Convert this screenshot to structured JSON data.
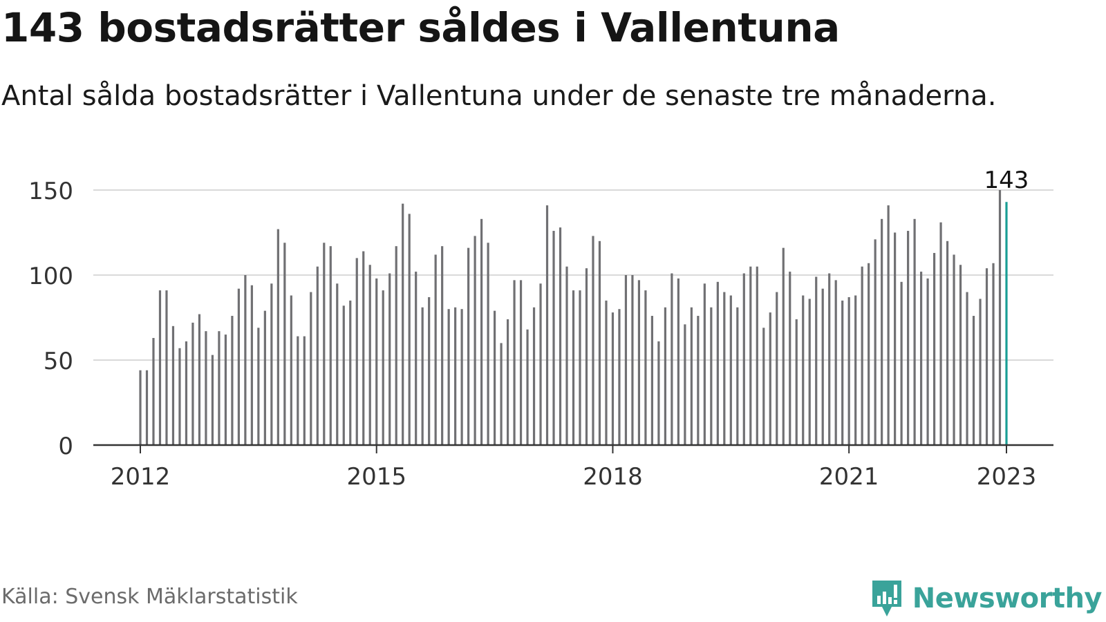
{
  "title": "143 bostadsrätter såldes i Vallentuna",
  "subtitle": "Antal sålda bostadsrätter i Vallentuna under de senaste tre månaderna.",
  "source": "Källa: Svensk Mäklarstatistik",
  "brand": {
    "name": "Newsworthy",
    "icon": "newsworthy-logo-icon",
    "color": "#3aa39a"
  },
  "colors": {
    "bar": "#707073",
    "highlight": "#1a9e95",
    "grid": "#d9d9d9",
    "axis": "#333333"
  },
  "chart_data": {
    "type": "bar",
    "title": "143 bostadsrätter såldes i Vallentuna",
    "xlabel": "",
    "ylabel": "",
    "ylim": [
      0,
      150
    ],
    "yticks": [
      0,
      50,
      100,
      150
    ],
    "xticks": [
      "2012",
      "2015",
      "2018",
      "2021",
      "2023"
    ],
    "grid": true,
    "highlight_last": true,
    "annotation": "143",
    "start_period": "2012-01",
    "series": [
      {
        "values": [
          44,
          44,
          63,
          91,
          91,
          70,
          57,
          61,
          72,
          77,
          67,
          53,
          67,
          65,
          76,
          92,
          100,
          94,
          69,
          79,
          95,
          127,
          119,
          88,
          64,
          64,
          90,
          105,
          119,
          117,
          95,
          82,
          85,
          110,
          114,
          106,
          98,
          91,
          101,
          117,
          142,
          136,
          102,
          81,
          87,
          112,
          117,
          80,
          81,
          80,
          116,
          123,
          133,
          119,
          79,
          60,
          74,
          97,
          97,
          68,
          81,
          95,
          141,
          126,
          128,
          105,
          91,
          91,
          104,
          123,
          120,
          85,
          78,
          80,
          100,
          100,
          97,
          91,
          76,
          61,
          81,
          101,
          98,
          71,
          81,
          76,
          95,
          81,
          96,
          90,
          88,
          81,
          101,
          105,
          105,
          69,
          78,
          90,
          116,
          102,
          74,
          88,
          86,
          99,
          92,
          101,
          97,
          85,
          87,
          88,
          105,
          107,
          121,
          133,
          141,
          125,
          96,
          126,
          133,
          102,
          98,
          113,
          131,
          120,
          112,
          106,
          90,
          76,
          86,
          104,
          107,
          150,
          143
        ]
      }
    ]
  }
}
